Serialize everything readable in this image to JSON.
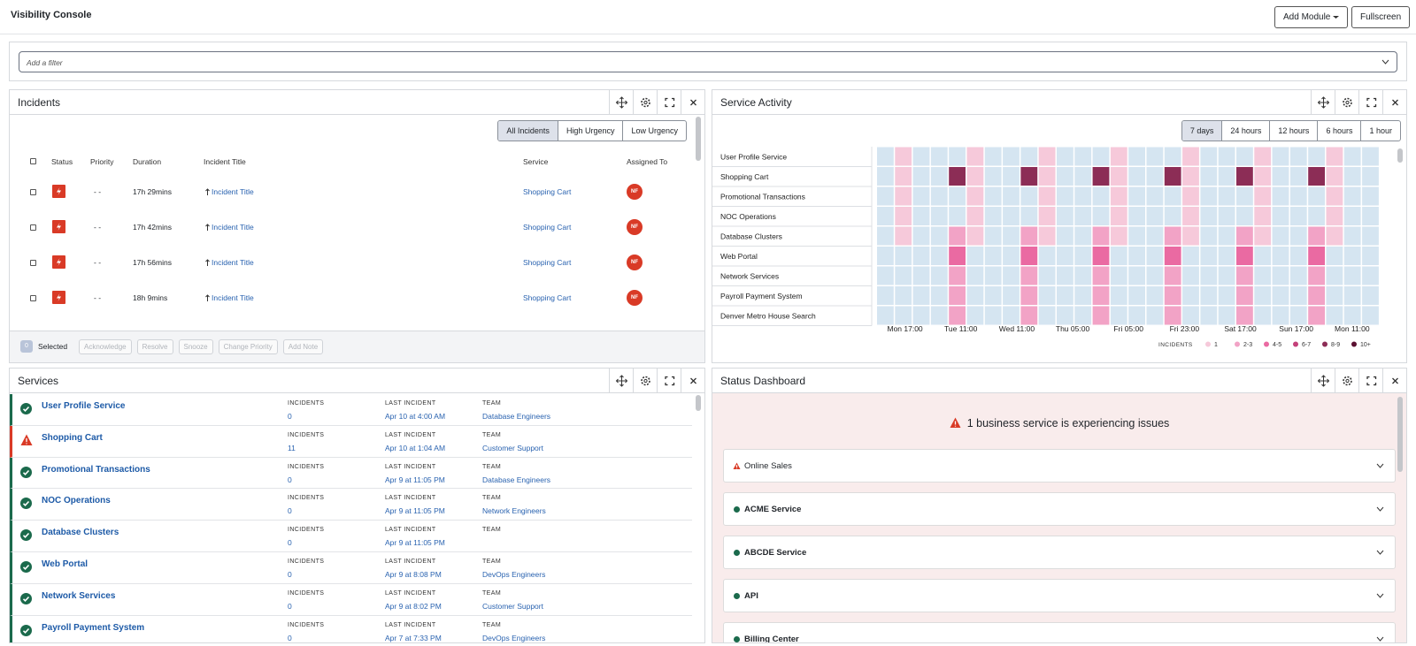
{
  "header": {
    "title": "Visibility Console",
    "buttons": [
      "Add Module",
      "Fullscreen"
    ]
  },
  "filter": {
    "placeholder": "Add a filter"
  },
  "incidents": {
    "title": "Incidents",
    "tabs": [
      "All Incidents",
      "High Urgency",
      "Low Urgency"
    ],
    "columns": [
      "Status",
      "Priority",
      "Duration",
      "Incident Title",
      "Service",
      "Assigned To"
    ],
    "rows": [
      {
        "priority": "- -",
        "duration": "17h 29mins",
        "title": "Incident Title",
        "service": "Shopping Cart",
        "assignee": "NF"
      },
      {
        "priority": "- -",
        "duration": "17h 42mins",
        "title": "Incident Title",
        "service": "Shopping Cart",
        "assignee": "NF"
      },
      {
        "priority": "- -",
        "duration": "17h 56mins",
        "title": "Incident Title",
        "service": "Shopping Cart",
        "assignee": "NF"
      },
      {
        "priority": "- -",
        "duration": "18h 9mins",
        "title": "Incident Title",
        "service": "Shopping Cart",
        "assignee": "NF"
      }
    ],
    "footer": {
      "selected_count": "0",
      "selected_label": "Selected",
      "actions": [
        "Acknowledge",
        "Resolve",
        "Snooze",
        "Change Priority",
        "Add Note"
      ]
    }
  },
  "service_activity": {
    "title": "Service Activity",
    "ranges": [
      "7 days",
      "24 hours",
      "12 hours",
      "6 hours",
      "1 hour"
    ],
    "heatmap": {
      "rows": [
        "User Profile Service",
        "Shopping Cart",
        "Promotional Transactions",
        "NOC Operations",
        "Database Clusters",
        "Web Portal",
        "Network Services",
        "Payroll Payment System",
        "Denver Metro House Search"
      ],
      "x_labels": [
        "Mon 17:00",
        "Tue 11:00",
        "Wed 11:00",
        "Thu 05:00",
        "Fri 05:00",
        "Fri 23:00",
        "Sat 17:00",
        "Sun 17:00",
        "Mon 11:00"
      ],
      "empty_color": "#d5e5f1",
      "values": [
        [
          0,
          1,
          0,
          0,
          0,
          1,
          0,
          0,
          0,
          1,
          0,
          0,
          0,
          1,
          0,
          0,
          0,
          1,
          0,
          0,
          0,
          1,
          0,
          0,
          0,
          1,
          0,
          0
        ],
        [
          0,
          1,
          0,
          0,
          8,
          1,
          0,
          0,
          8,
          1,
          0,
          0,
          8,
          1,
          0,
          0,
          8,
          1,
          0,
          0,
          8,
          1,
          0,
          0,
          8,
          1,
          0,
          0
        ],
        [
          0,
          1,
          0,
          0,
          0,
          1,
          0,
          0,
          0,
          1,
          0,
          0,
          0,
          1,
          0,
          0,
          0,
          1,
          0,
          0,
          0,
          1,
          0,
          0,
          0,
          1,
          0,
          0
        ],
        [
          0,
          1,
          0,
          0,
          0,
          1,
          0,
          0,
          0,
          1,
          0,
          0,
          0,
          1,
          0,
          0,
          0,
          1,
          0,
          0,
          0,
          1,
          0,
          0,
          0,
          1,
          0,
          0
        ],
        [
          0,
          1,
          0,
          0,
          2,
          1,
          0,
          0,
          2,
          1,
          0,
          0,
          2,
          1,
          0,
          0,
          2,
          1,
          0,
          0,
          2,
          1,
          0,
          0,
          2,
          1,
          0,
          0
        ],
        [
          0,
          0,
          0,
          0,
          4,
          0,
          0,
          0,
          4,
          0,
          0,
          0,
          4,
          0,
          0,
          0,
          4,
          0,
          0,
          0,
          4,
          0,
          0,
          0,
          4,
          0,
          0,
          0
        ],
        [
          0,
          0,
          0,
          0,
          2,
          0,
          0,
          0,
          2,
          0,
          0,
          0,
          2,
          0,
          0,
          0,
          2,
          0,
          0,
          0,
          2,
          0,
          0,
          0,
          2,
          0,
          0,
          0
        ],
        [
          0,
          0,
          0,
          0,
          2,
          0,
          0,
          0,
          2,
          0,
          0,
          0,
          2,
          0,
          0,
          0,
          2,
          0,
          0,
          0,
          2,
          0,
          0,
          0,
          2,
          0,
          0,
          0
        ],
        [
          0,
          0,
          0,
          0,
          2,
          0,
          0,
          0,
          2,
          0,
          0,
          0,
          2,
          0,
          0,
          0,
          2,
          0,
          0,
          0,
          2,
          0,
          0,
          0,
          2,
          0,
          0,
          0
        ]
      ],
      "legend": {
        "title": "INCIDENTS",
        "items": [
          {
            "label": "1",
            "color": "#f6c9da"
          },
          {
            "label": "2-3",
            "color": "#f2a3c6"
          },
          {
            "label": "4-5",
            "color": "#ea6aa2"
          },
          {
            "label": "6-7",
            "color": "#c4417a"
          },
          {
            "label": "8-9",
            "color": "#8c2d56"
          },
          {
            "label": "10+",
            "color": "#5b1131"
          }
        ]
      }
    }
  },
  "services": {
    "title": "Services",
    "labels": {
      "incidents": "INCIDENTS",
      "last_incident": "LAST INCIDENT",
      "team": "TEAM"
    },
    "items": [
      {
        "name": "User Profile Service",
        "status": "ok",
        "incidents": "0",
        "last_incident": "Apr 10 at 4:00 AM",
        "team": "Database Engineers"
      },
      {
        "name": "Shopping Cart",
        "status": "warning",
        "incidents": "11",
        "last_incident": "Apr 10 at 1:04 AM",
        "team": "Customer Support"
      },
      {
        "name": "Promotional Transactions",
        "status": "ok",
        "incidents": "0",
        "last_incident": "Apr 9 at 11:05 PM",
        "team": "Database Engineers"
      },
      {
        "name": "NOC Operations",
        "status": "ok",
        "incidents": "0",
        "last_incident": "Apr 9 at 11:05 PM",
        "team": "Network Engineers"
      },
      {
        "name": "Database Clusters",
        "status": "ok",
        "incidents": "0",
        "last_incident": "Apr 9 at 11:05 PM"
      },
      {
        "name": "Web Portal",
        "status": "ok",
        "incidents": "0",
        "last_incident": "Apr 9 at 8:08 PM",
        "team": "DevOps Engineers"
      },
      {
        "name": "Network Services",
        "status": "ok",
        "incidents": "0",
        "last_incident": "Apr 9 at 8:02 PM",
        "team": "Customer Support"
      },
      {
        "name": "Payroll Payment System",
        "status": "ok",
        "incidents": "0",
        "last_incident": "Apr 7 at 7:33 PM",
        "team": "DevOps Engineers"
      }
    ]
  },
  "status_dashboard": {
    "title": "Status Dashboard",
    "headline": "1 business service is experiencing issues",
    "services": [
      {
        "name": "Online Sales",
        "status": "warning"
      },
      {
        "name": "ACME Service",
        "status": "ok"
      },
      {
        "name": "ABCDE Service",
        "status": "ok"
      },
      {
        "name": "API",
        "status": "ok"
      },
      {
        "name": "Billing Center",
        "status": "ok"
      }
    ]
  }
}
